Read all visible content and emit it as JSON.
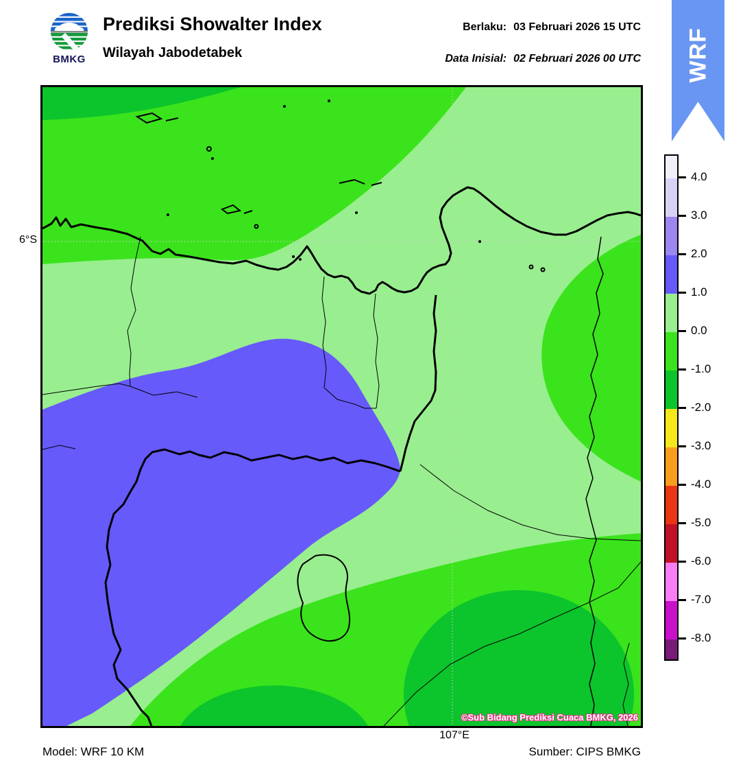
{
  "palette": {
    "ribbon_blue": "#6996F2",
    "light_green": "#99EE8F",
    "bright_green": "#3BE31C",
    "green": "#0CC42C",
    "blue_violet": "#665AFA",
    "pale_lavender": "#D9D2F7",
    "near_white": "#F2EFFB",
    "medium_purple": "#9C86F0",
    "logo_blue": "#1B64C8",
    "logo_green": "#149A3C"
  },
  "header": {
    "logo_text": "BMKG",
    "title": "Prediksi Showalter Index",
    "subtitle": "Wilayah Jabodetabek",
    "valid_label": "Berlaku:",
    "valid_value": "03 Februari 2026 15 UTC",
    "init_label": "Data Inisial:",
    "init_value": "02 Februari 2026 00 UTC",
    "ribbon_text": "WRF"
  },
  "map": {
    "lat_label": "6°S",
    "lon_label": "107°E",
    "copyright": "©Sub Bidang Prediksi Cuaca BMKG, 2026"
  },
  "colorbar": {
    "ticks": [
      "4.0",
      "3.0",
      "2.0",
      "1.0",
      "0.0",
      "-1.0",
      "-2.0",
      "-3.0",
      "-4.0",
      "-5.0",
      "-6.0",
      "-7.0",
      "-8.0"
    ],
    "segment_colors": [
      "#F2EFFB",
      "#D9D2F7",
      "#9C86F0",
      "#665AFA",
      "#99EE8F",
      "#3BE31C",
      "#0CC42C",
      "#F6E81A",
      "#F89D1D",
      "#EB3513",
      "#C11127",
      "#F97DF5",
      "#CB10CB",
      "#7A1B7A"
    ]
  },
  "footer": {
    "model_label": "Model:",
    "model_value": "WRF 10 KM",
    "source_label": "Sumber:",
    "source_value": "CIPS BMKG"
  }
}
